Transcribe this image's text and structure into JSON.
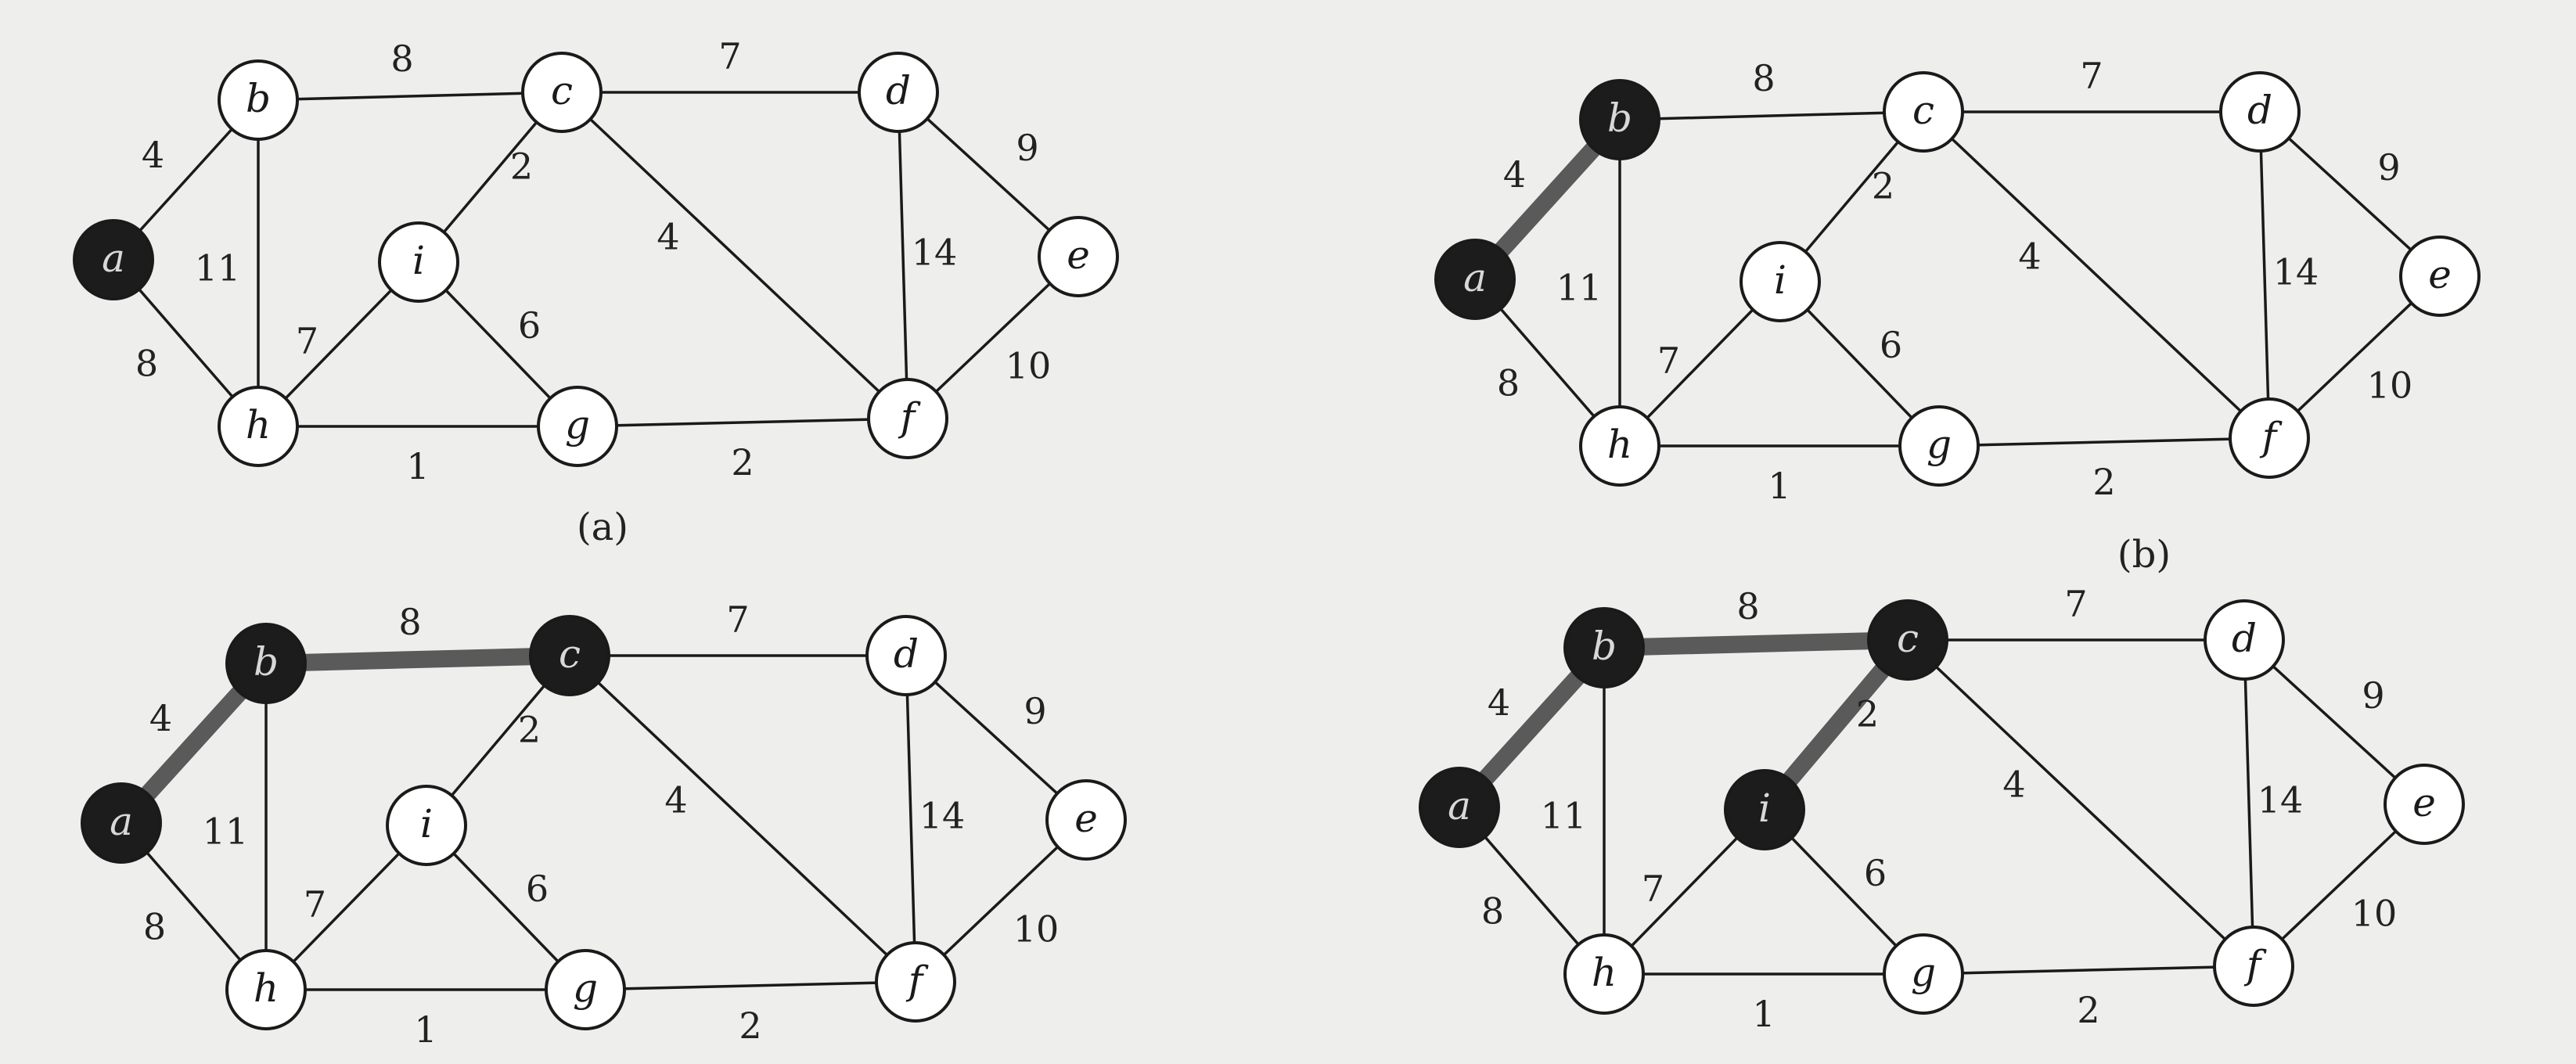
{
  "figure": {
    "nodes": [
      {
        "id": "a",
        "label": "a"
      },
      {
        "id": "b",
        "label": "b"
      },
      {
        "id": "c",
        "label": "c"
      },
      {
        "id": "d",
        "label": "d"
      },
      {
        "id": "e",
        "label": "e"
      },
      {
        "id": "f",
        "label": "f"
      },
      {
        "id": "g",
        "label": "g"
      },
      {
        "id": "h",
        "label": "h"
      },
      {
        "id": "i",
        "label": "i"
      }
    ],
    "edges": [
      {
        "from": "a",
        "to": "b",
        "weight": "4"
      },
      {
        "from": "a",
        "to": "h",
        "weight": "8"
      },
      {
        "from": "b",
        "to": "c",
        "weight": "8"
      },
      {
        "from": "b",
        "to": "h",
        "weight": "11"
      },
      {
        "from": "c",
        "to": "d",
        "weight": "7"
      },
      {
        "from": "c",
        "to": "i",
        "weight": "2"
      },
      {
        "from": "c",
        "to": "f",
        "weight": "4"
      },
      {
        "from": "d",
        "to": "e",
        "weight": "9"
      },
      {
        "from": "d",
        "to": "f",
        "weight": "14"
      },
      {
        "from": "e",
        "to": "f",
        "weight": "10"
      },
      {
        "from": "h",
        "to": "i",
        "weight": "7"
      },
      {
        "from": "h",
        "to": "g",
        "weight": "1"
      },
      {
        "from": "i",
        "to": "g",
        "weight": "6"
      },
      {
        "from": "g",
        "to": "f",
        "weight": "2"
      }
    ],
    "panels": [
      {
        "id": "a",
        "caption": "(a)",
        "selected_nodes": [
          "a"
        ],
        "selected_edges": []
      },
      {
        "id": "b",
        "caption": "(b)",
        "selected_nodes": [
          "a",
          "b"
        ],
        "selected_edges": [
          "a-b"
        ]
      },
      {
        "id": "c",
        "caption": "",
        "selected_nodes": [
          "a",
          "b",
          "c"
        ],
        "selected_edges": [
          "a-b",
          "b-c"
        ]
      },
      {
        "id": "d",
        "caption": "",
        "selected_nodes": [
          "a",
          "b",
          "c",
          "i"
        ],
        "selected_edges": [
          "a-b",
          "b-c",
          "c-i"
        ]
      }
    ],
    "colors": {
      "node_fill": "#ffffff",
      "node_selected_fill": "#1c1c1c",
      "stroke": "#1a1a1a",
      "selected_edge": "#5a5a5a",
      "selected_label": "#d8d8d8"
    }
  }
}
